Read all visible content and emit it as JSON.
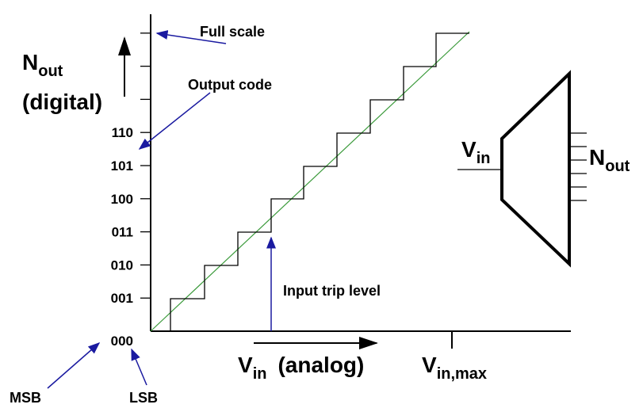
{
  "y_axis_label": {
    "main": "N",
    "sub": "out",
    "line2": "(digital)"
  },
  "codes": [
    "110",
    "101",
    "100",
    "011",
    "010",
    "001",
    "000"
  ],
  "annotations": {
    "full_scale": "Full scale",
    "output_code": "Output code",
    "input_trip_level": "Input trip level",
    "msb": "MSB",
    "lsb": "LSB"
  },
  "x_axis_label": {
    "main": "V",
    "sub": "in",
    "suffix": "(analog)"
  },
  "vin_max": {
    "main": "V",
    "sub": "in,max"
  },
  "converter": {
    "input": {
      "main": "V",
      "sub": "in"
    },
    "output": {
      "main": "N",
      "sub": "out"
    }
  }
}
